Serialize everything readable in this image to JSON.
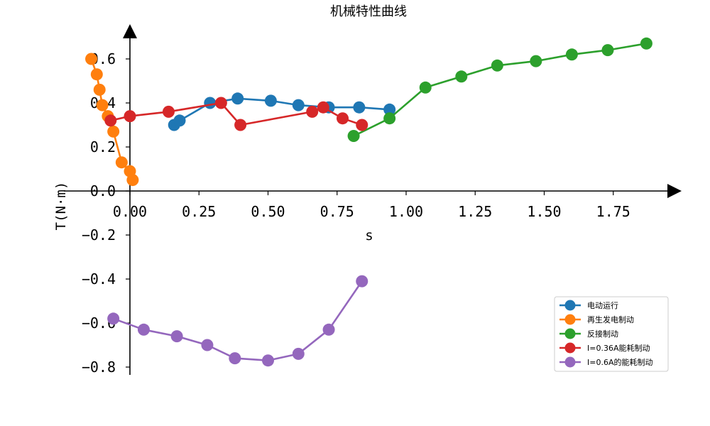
{
  "chart_data": {
    "type": "line",
    "title": "机械特性曲线",
    "xlabel": "s",
    "ylabel": "T(N·m)",
    "xlim": [
      -0.25,
      2.0
    ],
    "ylim": [
      -0.85,
      0.72
    ],
    "x_ticks": [
      0.0,
      0.25,
      0.5,
      0.75,
      1.0,
      1.25,
      1.5,
      1.75
    ],
    "x_tick_labels": [
      "0.00",
      "0.25",
      "0.50",
      "0.75",
      "1.00",
      "1.25",
      "1.50",
      "1.75"
    ],
    "y_ticks": [
      -0.8,
      -0.6,
      -0.4,
      -0.2,
      0.0,
      0.2,
      0.4,
      0.6
    ],
    "y_tick_labels": [
      "−0.8",
      "−0.6",
      "−0.4",
      "−0.2",
      "0.0",
      "0.2",
      "0.4",
      "0.6"
    ],
    "grid": false,
    "legend_position": "lower-right",
    "series": [
      {
        "name": "电动运行",
        "color": "#1f77b4",
        "x": [
          0.16,
          0.18,
          0.29,
          0.39,
          0.51,
          0.61,
          0.72,
          0.83,
          0.94
        ],
        "y": [
          0.3,
          0.32,
          0.4,
          0.42,
          0.41,
          0.39,
          0.38,
          0.38,
          0.37
        ]
      },
      {
        "name": "再生发电制动",
        "color": "#ff7f0e",
        "x": [
          -0.14,
          -0.12,
          -0.11,
          -0.1,
          -0.08,
          -0.06,
          -0.03,
          0.0,
          0.01
        ],
        "y": [
          0.6,
          0.53,
          0.46,
          0.39,
          0.34,
          0.27,
          0.13,
          0.09,
          0.05
        ]
      },
      {
        "name": "反接制动",
        "color": "#2ca02c",
        "x": [
          0.81,
          0.94,
          1.07,
          1.2,
          1.33,
          1.47,
          1.6,
          1.73,
          1.87
        ],
        "y": [
          0.25,
          0.33,
          0.47,
          0.52,
          0.57,
          0.59,
          0.62,
          0.64,
          0.67
        ]
      },
      {
        "name": "I=0.36A能耗制动",
        "color": "#d62728",
        "x": [
          -0.07,
          0.0,
          0.14,
          0.33,
          0.4,
          0.66,
          0.7,
          0.77,
          0.84
        ],
        "y": [
          0.32,
          0.34,
          0.36,
          0.4,
          0.3,
          0.36,
          0.38,
          0.33,
          0.3
        ]
      },
      {
        "name": "I=0.6A的能耗制动",
        "color": "#9467bd",
        "x": [
          -0.06,
          0.05,
          0.17,
          0.28,
          0.38,
          0.5,
          0.61,
          0.72,
          0.84
        ],
        "y": [
          -0.58,
          -0.63,
          -0.66,
          -0.7,
          -0.76,
          -0.77,
          -0.74,
          -0.63,
          -0.41
        ]
      }
    ]
  }
}
